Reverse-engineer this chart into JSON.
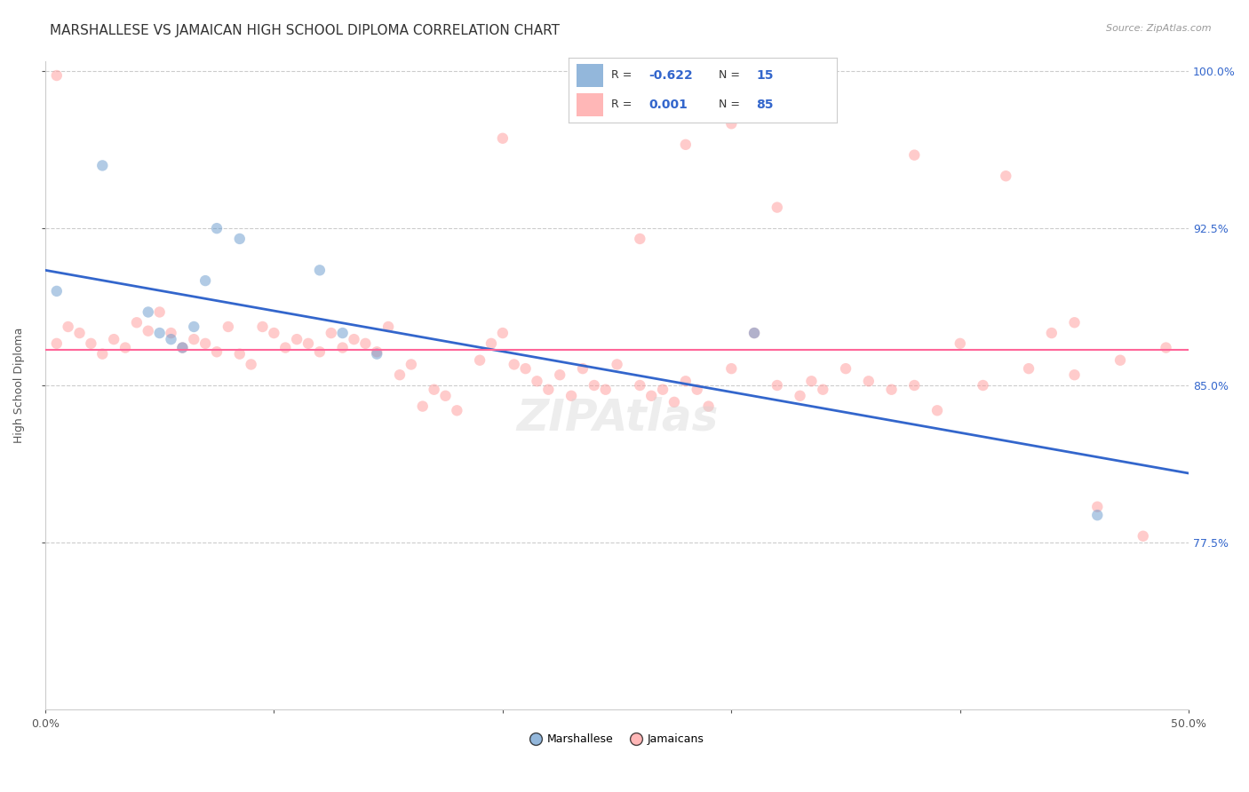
{
  "title": "MARSHALLESE VS JAMAICAN HIGH SCHOOL DIPLOMA CORRELATION CHART",
  "source": "Source: ZipAtlas.com",
  "ylabel": "High School Diploma",
  "xlim": [
    0.0,
    0.5
  ],
  "ylim": [
    0.695,
    1.005
  ],
  "xticks": [
    0.0,
    0.1,
    0.2,
    0.3,
    0.4,
    0.5
  ],
  "xticklabels": [
    "0.0%",
    "",
    "",
    "",
    "",
    "50.0%"
  ],
  "yticks": [
    0.775,
    0.85,
    0.925,
    1.0
  ],
  "yticklabels": [
    "77.5%",
    "85.0%",
    "92.5%",
    "100.0%"
  ],
  "marshallese_x": [
    0.005,
    0.025,
    0.045,
    0.05,
    0.055,
    0.06,
    0.065,
    0.07,
    0.075,
    0.085,
    0.12,
    0.13,
    0.145,
    0.31,
    0.46
  ],
  "marshallese_y": [
    0.895,
    0.955,
    0.885,
    0.875,
    0.872,
    0.868,
    0.878,
    0.9,
    0.925,
    0.92,
    0.905,
    0.875,
    0.865,
    0.875,
    0.788
  ],
  "jamaicans_x": [
    0.005,
    0.01,
    0.015,
    0.02,
    0.025,
    0.03,
    0.035,
    0.04,
    0.045,
    0.05,
    0.055,
    0.06,
    0.065,
    0.07,
    0.075,
    0.08,
    0.085,
    0.09,
    0.095,
    0.1,
    0.105,
    0.11,
    0.115,
    0.12,
    0.125,
    0.13,
    0.135,
    0.14,
    0.145,
    0.15,
    0.155,
    0.16,
    0.165,
    0.17,
    0.175,
    0.18,
    0.19,
    0.195,
    0.2,
    0.205,
    0.21,
    0.215,
    0.22,
    0.225,
    0.23,
    0.235,
    0.24,
    0.245,
    0.25,
    0.26,
    0.265,
    0.27,
    0.275,
    0.28,
    0.285,
    0.29,
    0.3,
    0.31,
    0.32,
    0.33,
    0.335,
    0.34,
    0.35,
    0.36,
    0.37,
    0.38,
    0.39,
    0.4,
    0.41,
    0.43,
    0.44,
    0.45,
    0.46,
    0.47,
    0.48,
    0.49,
    0.32,
    0.28,
    0.3,
    0.38,
    0.2,
    0.26,
    0.45,
    0.42,
    0.005
  ],
  "jamaicans_y": [
    0.87,
    0.878,
    0.875,
    0.87,
    0.865,
    0.872,
    0.868,
    0.88,
    0.876,
    0.885,
    0.875,
    0.868,
    0.872,
    0.87,
    0.866,
    0.878,
    0.865,
    0.86,
    0.878,
    0.875,
    0.868,
    0.872,
    0.87,
    0.866,
    0.875,
    0.868,
    0.872,
    0.87,
    0.866,
    0.878,
    0.855,
    0.86,
    0.84,
    0.848,
    0.845,
    0.838,
    0.862,
    0.87,
    0.875,
    0.86,
    0.858,
    0.852,
    0.848,
    0.855,
    0.845,
    0.858,
    0.85,
    0.848,
    0.86,
    0.85,
    0.845,
    0.848,
    0.842,
    0.852,
    0.848,
    0.84,
    0.858,
    0.875,
    0.85,
    0.845,
    0.852,
    0.848,
    0.858,
    0.852,
    0.848,
    0.85,
    0.838,
    0.87,
    0.85,
    0.858,
    0.875,
    0.855,
    0.792,
    0.862,
    0.778,
    0.868,
    0.935,
    0.965,
    0.975,
    0.96,
    0.968,
    0.92,
    0.88,
    0.95,
    0.998
  ],
  "blue_line_x": [
    0.0,
    0.5
  ],
  "blue_line_y": [
    0.905,
    0.808
  ],
  "pink_line_y": 0.867,
  "blue_color": "#6699CC",
  "pink_color": "#FF9999",
  "blue_line_color": "#3366CC",
  "pink_line_color": "#FF6699",
  "legend_r_blue": "-0.622",
  "legend_n_blue": "15",
  "legend_r_pink": "0.001",
  "legend_n_pink": "85",
  "grid_color": "#CCCCCC",
  "title_fontsize": 11,
  "axis_label_fontsize": 9,
  "tick_fontsize": 9,
  "source_fontsize": 8,
  "marker_size": 80,
  "marker_alpha": 0.5
}
